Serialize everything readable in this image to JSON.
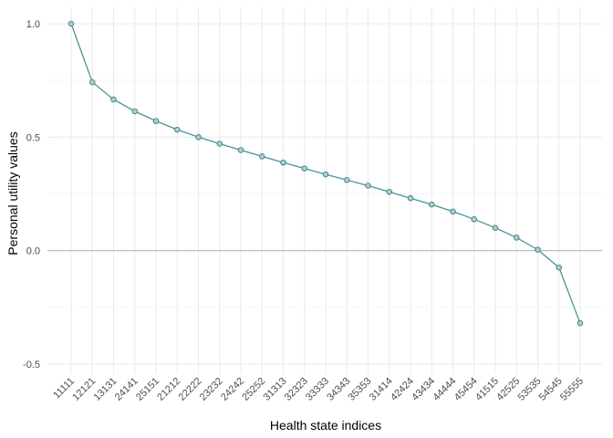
{
  "chart_data": {
    "type": "line",
    "title": "",
    "xlabel": "Health state indices",
    "ylabel": "Personal utility values",
    "categories": [
      "11111",
      "12121",
      "13131",
      "24141",
      "25151",
      "21212",
      "22222",
      "23232",
      "24242",
      "25252",
      "31313",
      "32323",
      "33333",
      "34343",
      "35353",
      "31414",
      "42424",
      "43434",
      "44444",
      "45454",
      "41515",
      "42525",
      "53535",
      "54545",
      "55555"
    ],
    "series": [
      {
        "name": "",
        "values": [
          1.0,
          0.742,
          0.666,
          0.614,
          0.571,
          0.533,
          0.5,
          0.471,
          0.443,
          0.415,
          0.388,
          0.362,
          0.336,
          0.311,
          0.286,
          0.259,
          0.231,
          0.203,
          0.172,
          0.138,
          0.1,
          0.057,
          0.004,
          -0.075,
          -0.32
        ]
      }
    ],
    "yticks": [
      -0.5,
      0.0,
      0.5,
      1.0
    ],
    "ytick_labels": [
      "-0.5",
      "0.0",
      "0.5",
      "1.0"
    ],
    "ylim": [
      -0.55,
      1.05
    ],
    "grid": true,
    "reference_line_y": 0,
    "colors": {
      "line": "#4a9497",
      "point_fill": "#a9cfd0",
      "point_stroke": "#3f7f82",
      "grid_major": "#ebebeb",
      "grid_minor": "#f4f4f4",
      "reference_line": "#bdbdbd"
    }
  }
}
